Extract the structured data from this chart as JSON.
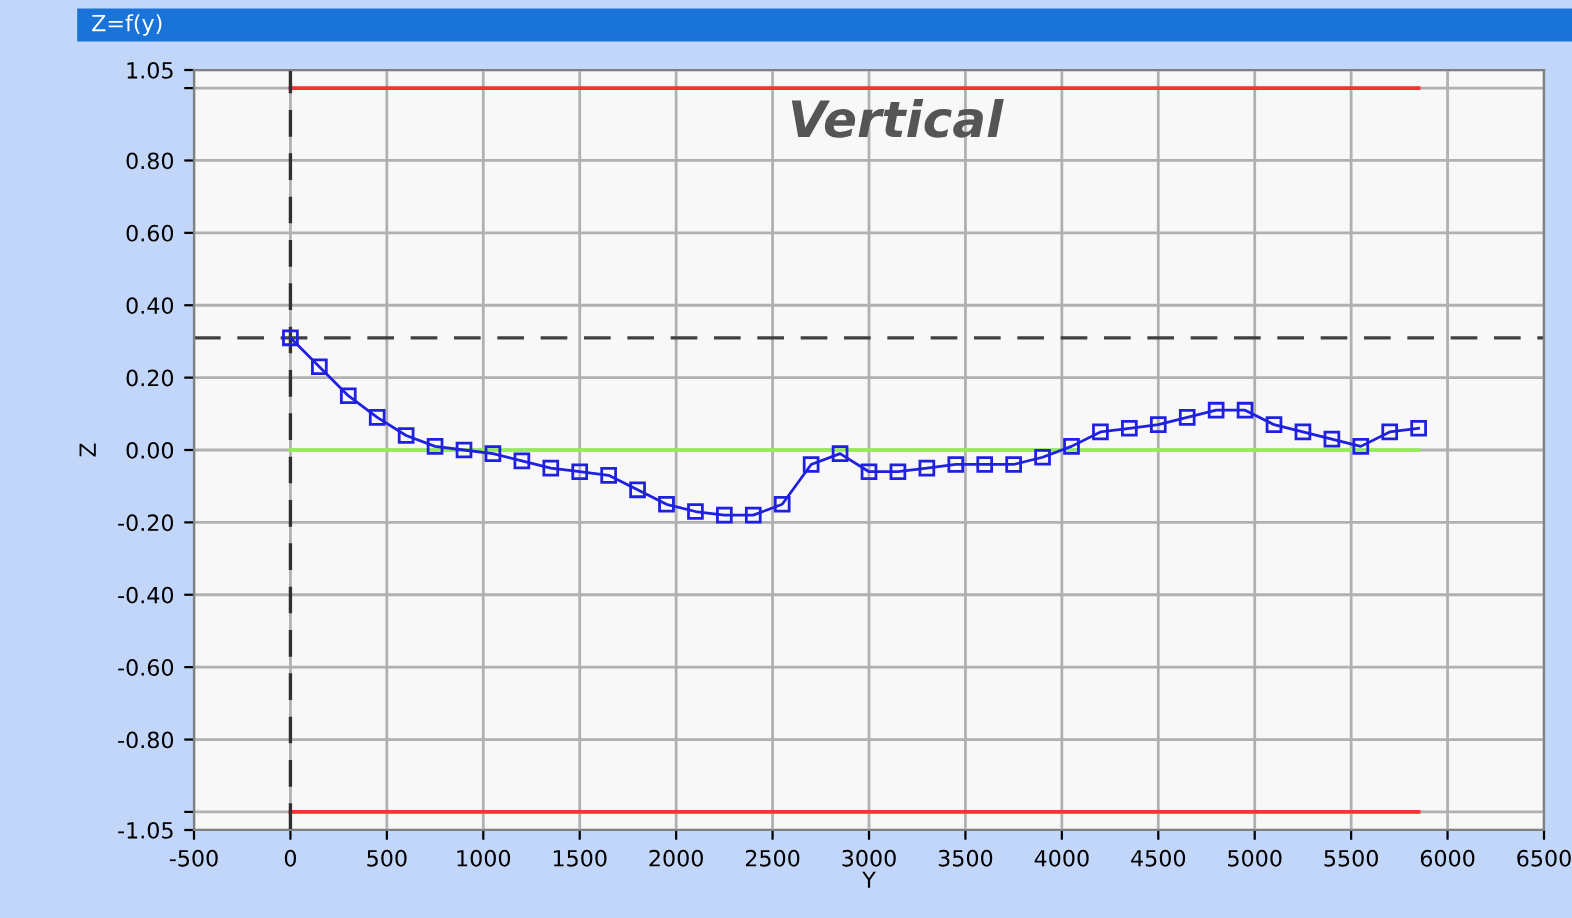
{
  "chart_data": {
    "type": "line",
    "title": "Z=f(y)",
    "xlabel": "Y",
    "ylabel": "Z",
    "annotations": [
      "Vertical"
    ],
    "series": [
      {
        "color": "#ff3030",
        "x": [
          0,
          5850
        ],
        "values": [
          1.0,
          1.0
        ],
        "marker": "none"
      },
      {
        "color": "#ff3030",
        "x": [
          0,
          5850
        ],
        "values": [
          -1.0,
          -1.0
        ],
        "marker": "none"
      },
      {
        "color": "#90ee50",
        "x": [
          0,
          5850
        ],
        "values": [
          0,
          0
        ],
        "marker": "none"
      },
      {
        "color": "#2020e0",
        "marker": "square",
        "x": [
          0,
          150,
          300,
          450,
          600,
          750,
          900,
          1050,
          1200,
          1350,
          1500,
          1650,
          1800,
          1950,
          2100,
          2250,
          2400,
          2550,
          2700,
          2850,
          3000,
          3150,
          3300,
          3450,
          3600,
          3750,
          3900,
          4050,
          4200,
          4350,
          4500,
          4650,
          4800,
          4950,
          5100,
          5250,
          5400,
          5550,
          5700,
          5850
        ],
        "values": [
          0.31,
          0.23,
          0.15,
          0.09,
          0.04,
          0.01,
          0.0,
          -0.01,
          -0.03,
          -0.05,
          -0.06,
          -0.07,
          -0.11,
          -0.15,
          -0.17,
          -0.18,
          -0.18,
          -0.15,
          -0.04,
          -0.01,
          -0.06,
          -0.06,
          -0.05,
          -0.04,
          -0.04,
          -0.04,
          -0.02,
          0.01,
          0.05,
          0.06,
          0.07,
          0.09,
          0.11,
          0.11,
          0.07,
          0.05,
          0.03,
          0.01,
          0.05,
          0.06
        ]
      }
    ],
    "ref_lines": [
      {
        "axis": "y",
        "value": 0.31,
        "color": "#404040",
        "line_style": "dashed"
      },
      {
        "axis": "x",
        "value": 0,
        "color": "#303030",
        "line_style": "dashed"
      }
    ],
    "xlim": [
      -500,
      6500
    ],
    "xticks": [
      -500,
      0,
      500,
      1000,
      1500,
      2000,
      2500,
      3000,
      3500,
      4000,
      4500,
      5000,
      5500,
      6000,
      6500
    ],
    "ylim": [
      -1.05,
      1.05
    ],
    "yticks": [
      {
        "value": -1.05,
        "label": "-1.05"
      },
      {
        "value": -1.0,
        "label": null
      },
      {
        "value": -0.8,
        "label": "-0.80"
      },
      {
        "value": -0.6,
        "label": "-0.60"
      },
      {
        "value": -0.4,
        "label": "-0.40"
      },
      {
        "value": -0.2,
        "label": "-0.20"
      },
      {
        "value": 0,
        "label": "0.00"
      },
      {
        "value": 0.2,
        "label": "0.20"
      },
      {
        "value": 0.4,
        "label": "0.40"
      },
      {
        "value": 0.6,
        "label": "0.60"
      },
      {
        "value": 0.8,
        "label": "0.80"
      },
      {
        "value": 1.0,
        "label": null
      },
      {
        "value": 1.05,
        "label": "1.05"
      }
    ],
    "grid": true,
    "legend": false
  }
}
